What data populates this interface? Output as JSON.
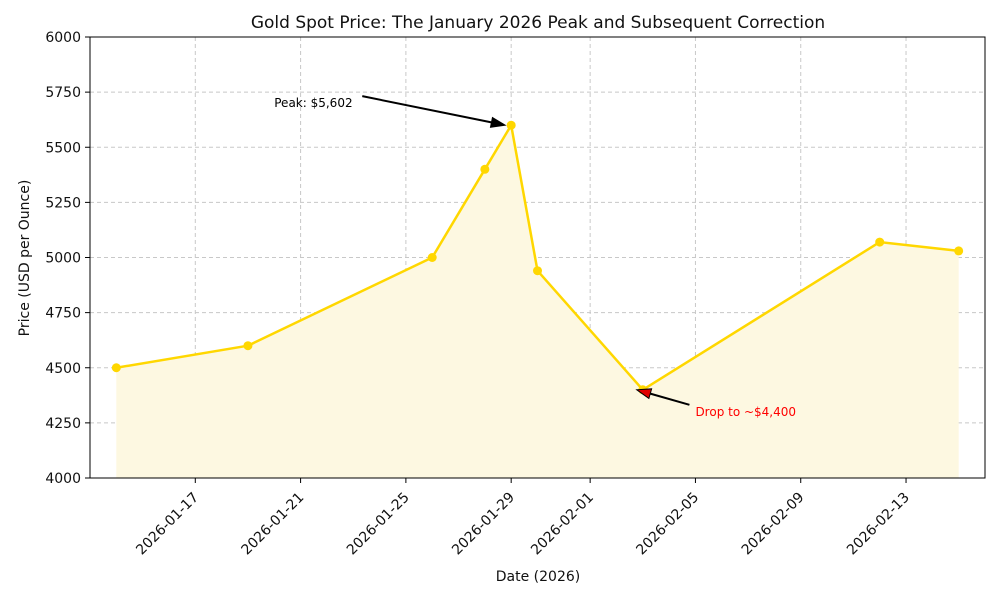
{
  "chart_data": {
    "type": "line",
    "title": "Gold Spot Price: The January 2026 Peak and Subsequent Correction",
    "xlabel": "Date (2026)",
    "ylabel": "Price (USD per Ounce)",
    "xlim": [
      "2026-01-13",
      "2026-02-16"
    ],
    "ylim": [
      4000,
      6000
    ],
    "x_ticks": [
      "2026-01-17",
      "2026-01-21",
      "2026-01-25",
      "2026-01-29",
      "2026-02-01",
      "2026-02-05",
      "2026-02-09",
      "2026-02-13"
    ],
    "y_ticks": [
      4000,
      4250,
      4500,
      4750,
      5000,
      5250,
      5500,
      5750,
      6000
    ],
    "grid": true,
    "fill_under": true,
    "series": [
      {
        "color": "#FFD700",
        "fill_color": "#FDF8E1",
        "x": [
          "2026-01-14",
          "2026-01-19",
          "2026-01-26",
          "2026-01-28",
          "2026-01-29",
          "2026-01-30",
          "2026-02-03",
          "2026-02-12",
          "2026-02-15"
        ],
        "y": [
          4500,
          4600,
          5000,
          5400,
          5600,
          4940,
          4400,
          5070,
          5030
        ]
      }
    ],
    "annotations": [
      {
        "text": "Peak: $5,602",
        "point": [
          "2026-01-29",
          5600
        ],
        "text_pos": [
          "2026-01-20",
          5700
        ],
        "color": "#000000"
      },
      {
        "text": "Drop to ~$4,400",
        "point": [
          "2026-02-03",
          4400
        ],
        "text_pos": [
          "2026-02-05",
          4300
        ],
        "color": "#FF0000"
      }
    ]
  }
}
